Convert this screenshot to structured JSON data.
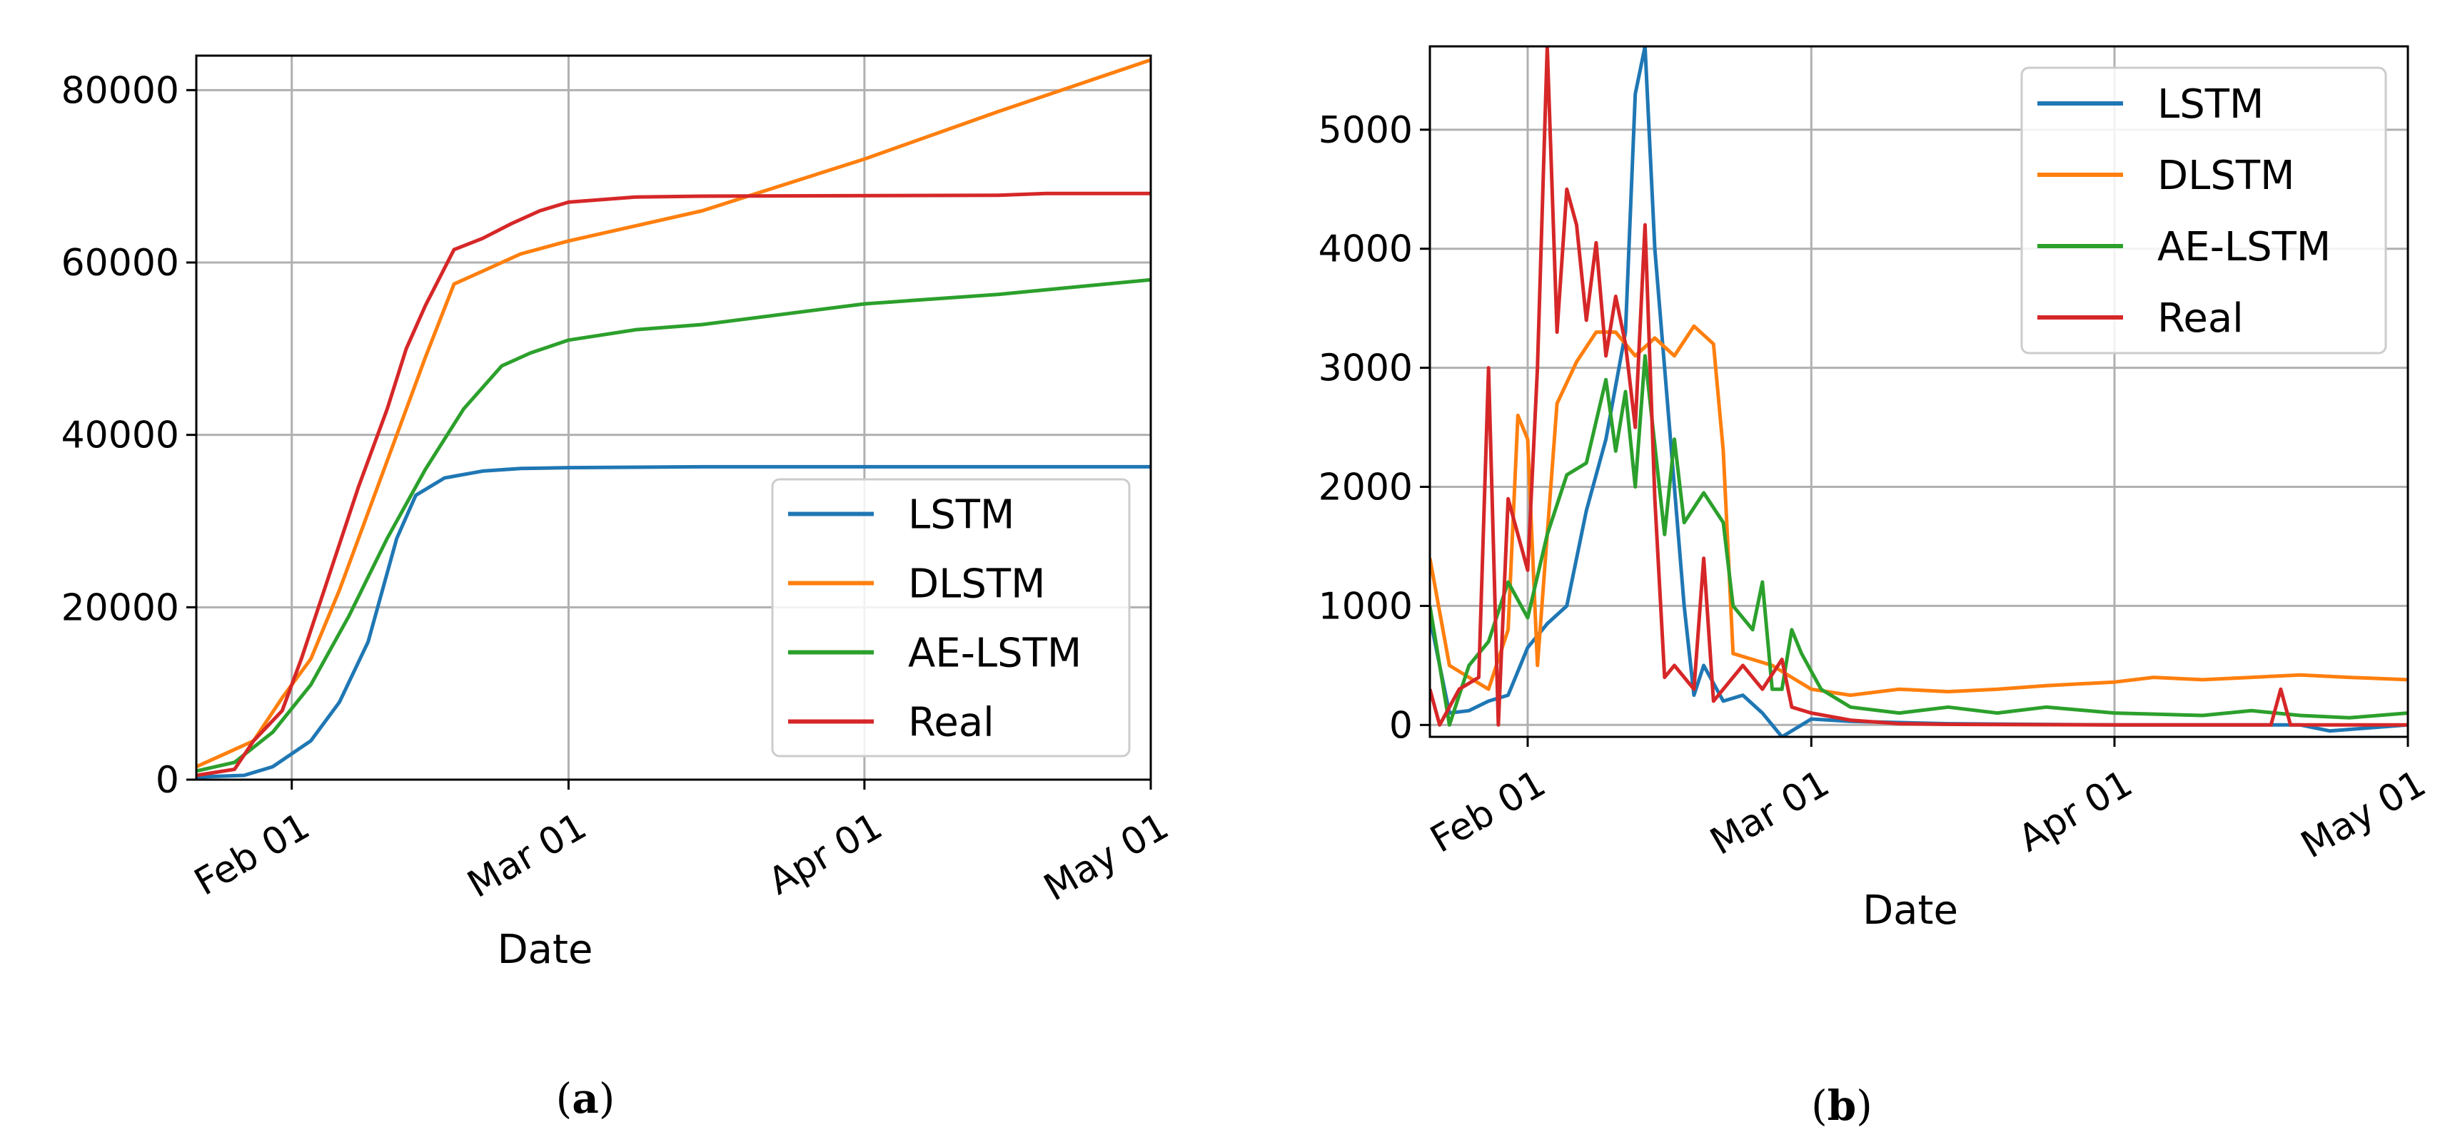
{
  "colors": {
    "LSTM": "#1f77b4",
    "DLSTM": "#ff7f0e",
    "AE-LSTM": "#2ca02c",
    "Real": "#d62728",
    "grid": "#b0b0b0"
  },
  "chart_data": [
    {
      "id": "a",
      "type": "line",
      "caption": "a",
      "xlabel": "Date",
      "ylabel": "",
      "x_axis": {
        "type": "date",
        "min": "2020-01-22",
        "max": "2020-05-01",
        "ticks": [
          "2020-02-01",
          "2020-03-01",
          "2020-04-01",
          "2020-05-01"
        ],
        "tick_labels": [
          "Feb 01",
          "Mar 01",
          "Apr 01",
          "May 01"
        ]
      },
      "ylim": [
        0,
        84000
      ],
      "yticks": [
        0,
        20000,
        40000,
        60000,
        80000
      ],
      "ytick_labels": [
        "0",
        "20000",
        "40000",
        "60000",
        "80000"
      ],
      "grid": true,
      "legend": "bottom-right",
      "series": [
        {
          "name": "LSTM",
          "points": [
            [
              "2020-01-22",
              300
            ],
            [
              "2020-01-27",
              500
            ],
            [
              "2020-01-30",
              1500
            ],
            [
              "2020-02-03",
              4500
            ],
            [
              "2020-02-06",
              9000
            ],
            [
              "2020-02-09",
              16000
            ],
            [
              "2020-02-12",
              28000
            ],
            [
              "2020-02-14",
              33000
            ],
            [
              "2020-02-17",
              35000
            ],
            [
              "2020-02-21",
              35800
            ],
            [
              "2020-02-25",
              36100
            ],
            [
              "2020-03-01",
              36200
            ],
            [
              "2020-03-15",
              36300
            ],
            [
              "2020-04-01",
              36300
            ],
            [
              "2020-05-01",
              36300
            ]
          ]
        },
        {
          "name": "DLSTM",
          "points": [
            [
              "2020-01-22",
              1500
            ],
            [
              "2020-01-25",
              3000
            ],
            [
              "2020-01-28",
              4500
            ],
            [
              "2020-01-31",
              9500
            ],
            [
              "2020-02-03",
              14000
            ],
            [
              "2020-02-06",
              22000
            ],
            [
              "2020-02-09",
              31000
            ],
            [
              "2020-02-12",
              40000
            ],
            [
              "2020-02-15",
              49000
            ],
            [
              "2020-02-18",
              57500
            ],
            [
              "2020-02-21",
              59000
            ],
            [
              "2020-02-25",
              61000
            ],
            [
              "2020-03-01",
              62500
            ],
            [
              "2020-03-15",
              66000
            ],
            [
              "2020-04-01",
              72000
            ],
            [
              "2020-04-15",
              77500
            ],
            [
              "2020-05-01",
              83500
            ]
          ]
        },
        {
          "name": "AE-LSTM",
          "points": [
            [
              "2020-01-22",
              1000
            ],
            [
              "2020-01-26",
              2000
            ],
            [
              "2020-01-30",
              5500
            ],
            [
              "2020-02-03",
              11000
            ],
            [
              "2020-02-07",
              19000
            ],
            [
              "2020-02-11",
              28000
            ],
            [
              "2020-02-15",
              36000
            ],
            [
              "2020-02-19",
              43000
            ],
            [
              "2020-02-23",
              48000
            ],
            [
              "2020-02-26",
              49500
            ],
            [
              "2020-03-01",
              51000
            ],
            [
              "2020-03-08",
              52200
            ],
            [
              "2020-03-15",
              52800
            ],
            [
              "2020-04-01",
              55200
            ],
            [
              "2020-04-15",
              56300
            ],
            [
              "2020-05-01",
              58000
            ]
          ]
        },
        {
          "name": "Real",
          "points": [
            [
              "2020-01-22",
              500
            ],
            [
              "2020-01-26",
              1200
            ],
            [
              "2020-01-28",
              4500
            ],
            [
              "2020-01-31",
              8000
            ],
            [
              "2020-02-02",
              14000
            ],
            [
              "2020-02-05",
              24000
            ],
            [
              "2020-02-08",
              34000
            ],
            [
              "2020-02-11",
              43000
            ],
            [
              "2020-02-13",
              50000
            ],
            [
              "2020-02-15",
              55000
            ],
            [
              "2020-02-18",
              61500
            ],
            [
              "2020-02-21",
              62800
            ],
            [
              "2020-02-24",
              64500
            ],
            [
              "2020-02-27",
              66000
            ],
            [
              "2020-03-01",
              67000
            ],
            [
              "2020-03-08",
              67600
            ],
            [
              "2020-03-15",
              67700
            ],
            [
              "2020-04-15",
              67800
            ],
            [
              "2020-04-20",
              68000
            ],
            [
              "2020-05-01",
              68000
            ]
          ]
        }
      ]
    },
    {
      "id": "b",
      "type": "line",
      "caption": "b",
      "xlabel": "Date",
      "ylabel": "",
      "x_axis": {
        "type": "date",
        "min": "2020-01-22",
        "max": "2020-05-01",
        "ticks": [
          "2020-02-01",
          "2020-03-01",
          "2020-04-01",
          "2020-05-01"
        ],
        "tick_labels": [
          "Feb 01",
          "Mar 01",
          "Apr 01",
          "May 01"
        ]
      },
      "ylim": [
        -100,
        5700
      ],
      "yticks": [
        0,
        1000,
        2000,
        3000,
        4000,
        5000
      ],
      "ytick_labels": [
        "0",
        "1000",
        "2000",
        "3000",
        "4000",
        "5000"
      ],
      "grid": true,
      "legend": "top-right",
      "series": [
        {
          "name": "LSTM",
          "points": [
            [
              "2020-01-22",
              900
            ],
            [
              "2020-01-24",
              100
            ],
            [
              "2020-01-26",
              120
            ],
            [
              "2020-01-28",
              200
            ],
            [
              "2020-01-30",
              250
            ],
            [
              "2020-02-01",
              650
            ],
            [
              "2020-02-03",
              850
            ],
            [
              "2020-02-05",
              1000
            ],
            [
              "2020-02-07",
              1800
            ],
            [
              "2020-02-09",
              2400
            ],
            [
              "2020-02-11",
              3300
            ],
            [
              "2020-02-12",
              5300
            ],
            [
              "2020-02-13",
              5700
            ],
            [
              "2020-02-14",
              4000
            ],
            [
              "2020-02-16",
              2000
            ],
            [
              "2020-02-17",
              1000
            ],
            [
              "2020-02-18",
              250
            ],
            [
              "2020-02-19",
              500
            ],
            [
              "2020-02-21",
              200
            ],
            [
              "2020-02-23",
              250
            ],
            [
              "2020-02-25",
              100
            ],
            [
              "2020-02-27",
              -100
            ],
            [
              "2020-03-01",
              50
            ],
            [
              "2020-03-05",
              30
            ],
            [
              "2020-03-15",
              10
            ],
            [
              "2020-04-01",
              0
            ],
            [
              "2020-04-20",
              0
            ],
            [
              "2020-04-23",
              -50
            ],
            [
              "2020-05-01",
              0
            ]
          ]
        },
        {
          "name": "DLSTM",
          "points": [
            [
              "2020-01-22",
              1400
            ],
            [
              "2020-01-24",
              500
            ],
            [
              "2020-01-26",
              400
            ],
            [
              "2020-01-28",
              300
            ],
            [
              "2020-01-30",
              800
            ],
            [
              "2020-01-31",
              2600
            ],
            [
              "2020-02-01",
              2400
            ],
            [
              "2020-02-02",
              500
            ],
            [
              "2020-02-04",
              2700
            ],
            [
              "2020-02-06",
              3050
            ],
            [
              "2020-02-08",
              3300
            ],
            [
              "2020-02-10",
              3300
            ],
            [
              "2020-02-12",
              3100
            ],
            [
              "2020-02-14",
              3250
            ],
            [
              "2020-02-16",
              3100
            ],
            [
              "2020-02-18",
              3350
            ],
            [
              "2020-02-20",
              3200
            ],
            [
              "2020-02-21",
              2300
            ],
            [
              "2020-02-22",
              600
            ],
            [
              "2020-02-24",
              550
            ],
            [
              "2020-02-26",
              500
            ],
            [
              "2020-02-28",
              400
            ],
            [
              "2020-03-01",
              300
            ],
            [
              "2020-03-05",
              250
            ],
            [
              "2020-03-10",
              300
            ],
            [
              "2020-03-15",
              280
            ],
            [
              "2020-03-20",
              300
            ],
            [
              "2020-03-25",
              330
            ],
            [
              "2020-04-01",
              360
            ],
            [
              "2020-04-05",
              400
            ],
            [
              "2020-04-10",
              380
            ],
            [
              "2020-04-15",
              400
            ],
            [
              "2020-04-20",
              420
            ],
            [
              "2020-04-25",
              400
            ],
            [
              "2020-05-01",
              380
            ]
          ]
        },
        {
          "name": "AE-LSTM",
          "points": [
            [
              "2020-01-22",
              1000
            ],
            [
              "2020-01-24",
              0
            ],
            [
              "2020-01-26",
              500
            ],
            [
              "2020-01-28",
              700
            ],
            [
              "2020-01-30",
              1200
            ],
            [
              "2020-02-01",
              900
            ],
            [
              "2020-02-03",
              1600
            ],
            [
              "2020-02-05",
              2100
            ],
            [
              "2020-02-07",
              2200
            ],
            [
              "2020-02-09",
              2900
            ],
            [
              "2020-02-10",
              2300
            ],
            [
              "2020-02-11",
              2800
            ],
            [
              "2020-02-12",
              2000
            ],
            [
              "2020-02-13",
              3100
            ],
            [
              "2020-02-15",
              1600
            ],
            [
              "2020-02-16",
              2400
            ],
            [
              "2020-02-17",
              1700
            ],
            [
              "2020-02-19",
              1950
            ],
            [
              "2020-02-21",
              1700
            ],
            [
              "2020-02-22",
              1000
            ],
            [
              "2020-02-24",
              800
            ],
            [
              "2020-02-25",
              1200
            ],
            [
              "2020-02-26",
              300
            ],
            [
              "2020-02-27",
              300
            ],
            [
              "2020-02-28",
              800
            ],
            [
              "2020-02-29",
              600
            ],
            [
              "2020-03-02",
              300
            ],
            [
              "2020-03-05",
              150
            ],
            [
              "2020-03-10",
              100
            ],
            [
              "2020-03-15",
              150
            ],
            [
              "2020-03-20",
              100
            ],
            [
              "2020-03-25",
              150
            ],
            [
              "2020-04-01",
              100
            ],
            [
              "2020-04-10",
              80
            ],
            [
              "2020-04-15",
              120
            ],
            [
              "2020-04-20",
              80
            ],
            [
              "2020-04-25",
              60
            ],
            [
              "2020-05-01",
              100
            ]
          ]
        },
        {
          "name": "Real",
          "points": [
            [
              "2020-01-22",
              300
            ],
            [
              "2020-01-23",
              0
            ],
            [
              "2020-01-25",
              300
            ],
            [
              "2020-01-27",
              400
            ],
            [
              "2020-01-28",
              3000
            ],
            [
              "2020-01-29",
              0
            ],
            [
              "2020-01-30",
              1900
            ],
            [
              "2020-02-01",
              1300
            ],
            [
              "2020-02-02",
              3000
            ],
            [
              "2020-02-03",
              5700
            ],
            [
              "2020-02-04",
              3300
            ],
            [
              "2020-02-05",
              4500
            ],
            [
              "2020-02-06",
              4200
            ],
            [
              "2020-02-07",
              3400
            ],
            [
              "2020-02-08",
              4050
            ],
            [
              "2020-02-09",
              3100
            ],
            [
              "2020-02-10",
              3600
            ],
            [
              "2020-02-11",
              3200
            ],
            [
              "2020-02-12",
              2500
            ],
            [
              "2020-02-13",
              4200
            ],
            [
              "2020-02-14",
              1900
            ],
            [
              "2020-02-15",
              400
            ],
            [
              "2020-02-16",
              500
            ],
            [
              "2020-02-18",
              300
            ],
            [
              "2020-02-19",
              1400
            ],
            [
              "2020-02-20",
              200
            ],
            [
              "2020-02-21",
              300
            ],
            [
              "2020-02-23",
              500
            ],
            [
              "2020-02-25",
              300
            ],
            [
              "2020-02-27",
              550
            ],
            [
              "2020-02-28",
              150
            ],
            [
              "2020-03-01",
              100
            ],
            [
              "2020-03-05",
              40
            ],
            [
              "2020-03-10",
              10
            ],
            [
              "2020-03-15",
              5
            ],
            [
              "2020-04-01",
              0
            ],
            [
              "2020-04-17",
              0
            ],
            [
              "2020-04-18",
              300
            ],
            [
              "2020-04-19",
              0
            ],
            [
              "2020-05-01",
              0
            ]
          ]
        }
      ]
    }
  ]
}
